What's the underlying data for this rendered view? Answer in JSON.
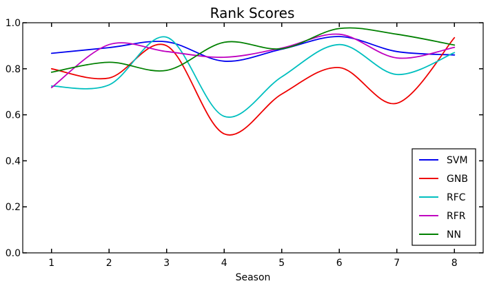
{
  "chart_data": {
    "type": "line",
    "title": "Rank Scores",
    "xlabel": "Season",
    "ylabel": "",
    "x": [
      1,
      2,
      3,
      4,
      5,
      6,
      7,
      8
    ],
    "xlim": [
      0.5,
      8.5
    ],
    "ylim": [
      0.0,
      1.0
    ],
    "xticks": [
      "1",
      "2",
      "3",
      "4",
      "5",
      "6",
      "7",
      "8"
    ],
    "yticks": [
      "0.0",
      "0.2",
      "0.4",
      "0.6",
      "0.8",
      "1.0"
    ],
    "grid": false,
    "legend": "lower-right",
    "series": [
      {
        "name": "SVM",
        "color": "#0000ee",
        "values": [
          0.867,
          0.892,
          0.917,
          0.833,
          0.885,
          0.94,
          0.875,
          0.86
        ]
      },
      {
        "name": "GNB",
        "color": "#ee0000",
        "values": [
          0.8,
          0.76,
          0.9,
          0.517,
          0.69,
          0.805,
          0.65,
          0.935
        ]
      },
      {
        "name": "RFC",
        "color": "#00bfbf",
        "values": [
          0.725,
          0.73,
          0.937,
          0.593,
          0.765,
          0.905,
          0.775,
          0.87
        ]
      },
      {
        "name": "RFR",
        "color": "#bf00bf",
        "values": [
          0.718,
          0.905,
          0.875,
          0.85,
          0.89,
          0.95,
          0.847,
          0.893
        ]
      },
      {
        "name": "NN",
        "color": "#008000",
        "values": [
          0.785,
          0.828,
          0.793,
          0.915,
          0.887,
          0.975,
          0.95,
          0.903
        ]
      }
    ]
  }
}
